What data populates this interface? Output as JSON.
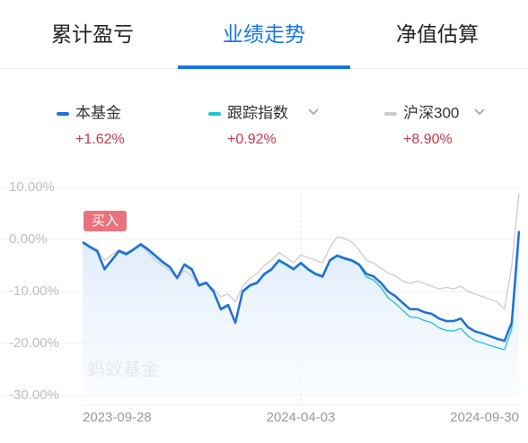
{
  "tabs": [
    "累计盈亏",
    "业绩走势",
    "净值估算"
  ],
  "chart_data": {
    "type": "line",
    "categories": [
      "2023-09-28",
      null,
      null,
      null,
      null,
      null,
      null,
      null,
      null,
      null,
      null,
      null,
      null,
      null,
      null,
      null,
      null,
      null,
      null,
      null,
      null,
      null,
      null,
      null,
      null,
      null,
      null,
      null,
      null,
      null,
      "2024-04-03",
      null,
      null,
      null,
      null,
      null,
      null,
      null,
      null,
      null,
      null,
      null,
      null,
      null,
      null,
      null,
      null,
      null,
      null,
      null,
      null,
      null,
      null,
      null,
      null,
      null,
      null,
      null,
      null,
      null,
      "2024-09-30"
    ],
    "ylim": [
      -30,
      10
    ],
    "yticks": [
      {
        "value": 10,
        "label": "10.00%"
      },
      {
        "value": 0,
        "label": "0.00%"
      },
      {
        "value": -10,
        "label": "-10.00%"
      },
      {
        "value": -20,
        "label": "-20.00%"
      },
      {
        "value": -30,
        "label": "-30.00%"
      }
    ],
    "grid": true,
    "annotations": [
      "买入",
      "蚂蚁基金"
    ],
    "series": [
      {
        "name": "本基金",
        "color": "#1f6fd9",
        "change": "+1.62%",
        "values": [
          -0.5,
          -1.4,
          -2.2,
          -5.7,
          -4,
          -2.2,
          -2.8,
          -1.9,
          -0.9,
          -1.9,
          -3.1,
          -4.3,
          -5.3,
          -7.4,
          -4.8,
          -5.7,
          -8.8,
          -8.3,
          -10,
          -13.4,
          -12.6,
          -16,
          -10,
          -8.8,
          -8.3,
          -6.6,
          -5.7,
          -4,
          -4.8,
          -5.7,
          -4.5,
          -5.7,
          -6.6,
          -7.1,
          -4,
          -3.1,
          -3.6,
          -4,
          -4.8,
          -6.6,
          -7.1,
          -8.3,
          -10,
          -10.9,
          -12.2,
          -13.4,
          -13.4,
          -14,
          -14.3,
          -15.2,
          -15.7,
          -15.7,
          -15.2,
          -16.9,
          -17.7,
          -18.1,
          -18.6,
          -19.1,
          -19.5,
          -16,
          1.62
        ]
      },
      {
        "name": "跟踪指数",
        "color": "#1ec3d6",
        "change": "+0.92%",
        "values": [
          -0.7,
          -1.6,
          -2.4,
          -5.9,
          -4.2,
          -2.4,
          -3,
          -2.1,
          -1.1,
          -2.1,
          -3.3,
          -4.5,
          -5.5,
          -7.6,
          -5,
          -5.9,
          -9,
          -8.5,
          -10.2,
          -13.6,
          -12.8,
          -16.2,
          -10.2,
          -9,
          -8.5,
          -6.8,
          -5.9,
          -4.2,
          -5,
          -5.9,
          -4.7,
          -5.9,
          -6.8,
          -7.3,
          -4.2,
          -3.3,
          -3.8,
          -4.2,
          -5,
          -7.2,
          -7.8,
          -9.2,
          -11.2,
          -12.3,
          -13.6,
          -14.9,
          -15,
          -15.6,
          -16,
          -17,
          -17.5,
          -17.6,
          -17.1,
          -18.6,
          -19.5,
          -19.9,
          -20.4,
          -20.8,
          -21.2,
          -17.2,
          0.92
        ]
      },
      {
        "name": "沪深300",
        "color": "#cccccc",
        "change": "+8.90%",
        "values": [
          -0.8,
          -1.5,
          -2,
          -4,
          -3,
          -2,
          -2.5,
          -2,
          -1.2,
          -2.5,
          -4,
          -5,
          -6,
          -7.5,
          -6,
          -7,
          -9,
          -8.5,
          -9.5,
          -11,
          -10.5,
          -12,
          -9,
          -7.5,
          -6.5,
          -5,
          -4,
          -2.5,
          -3.5,
          -4.5,
          -3,
          -3.5,
          -4,
          -4.5,
          -1.5,
          0.5,
          0.2,
          -0.5,
          -2,
          -4,
          -4.5,
          -5.5,
          -6.5,
          -7,
          -8,
          -8.5,
          -8,
          -8.5,
          -9,
          -9.5,
          -9.2,
          -9.5,
          -9,
          -10,
          -10.5,
          -11,
          -11.5,
          -12,
          -13.4,
          -5,
          8.9
        ]
      }
    ]
  }
}
